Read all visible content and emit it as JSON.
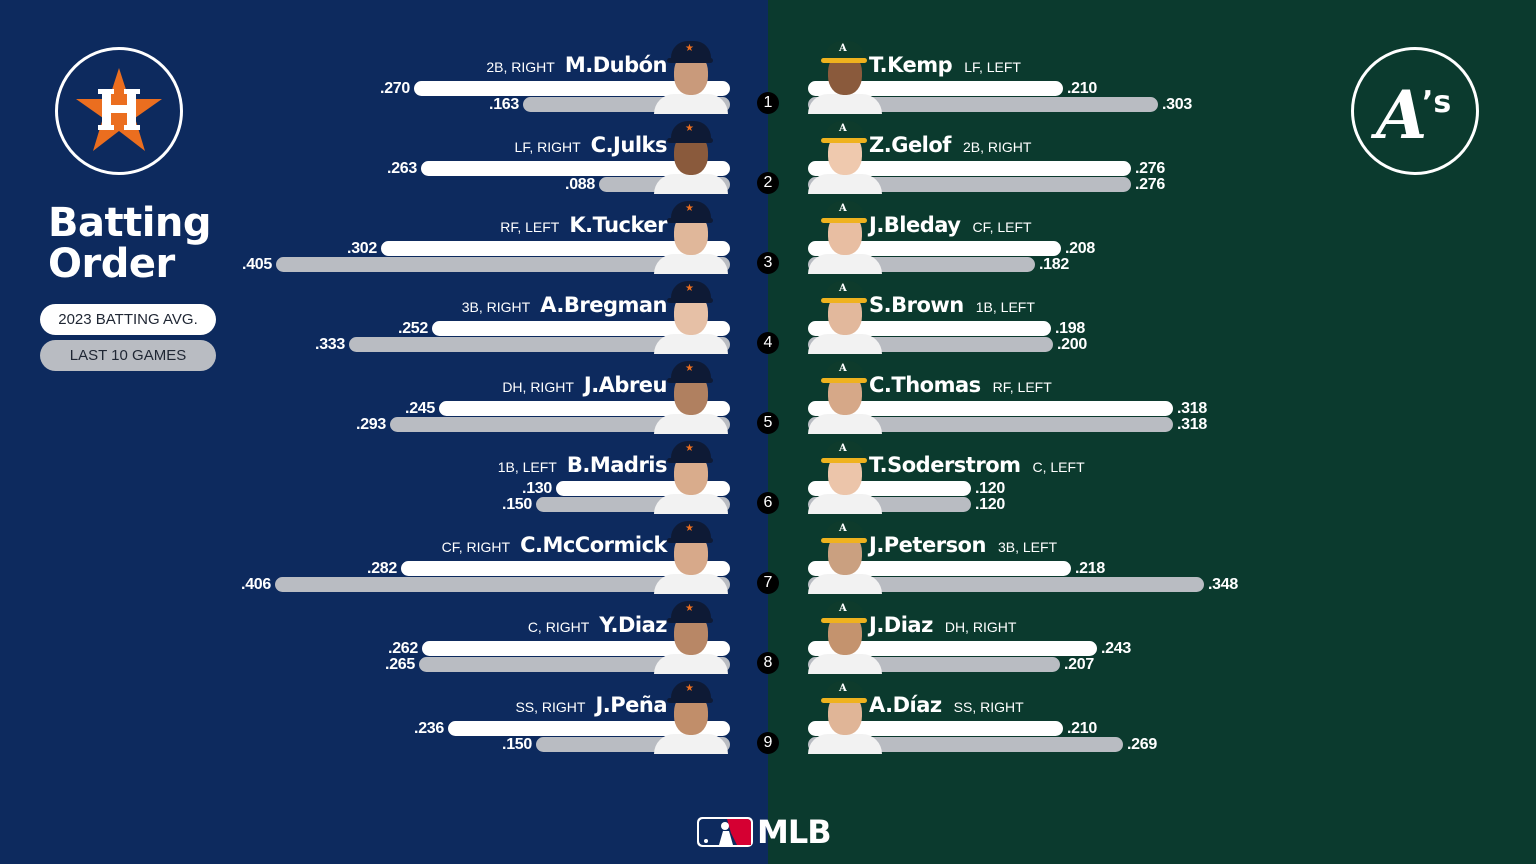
{
  "title": {
    "line1": "Batting",
    "line2": "Order"
  },
  "legend": {
    "season": "2023 BATTING AVG.",
    "last10": "LAST 10 GAMES"
  },
  "colors": {
    "astros_bg": "#0d2a5e",
    "athletics_bg": "#0b3a2e",
    "season_bar": "#ffffff",
    "last10_bar": "#b9bcc2",
    "astros_orange": "#eb6e1f",
    "athletics_gold": "#efb21e"
  },
  "teams": {
    "home": {
      "name": "Houston Astros",
      "logo": "astros-logo"
    },
    "away": {
      "name": "Oakland Athletics",
      "logo": "athletics-logo"
    }
  },
  "footer": {
    "brand": "MLB"
  },
  "chart_data": {
    "type": "bar",
    "title": "Batting Order",
    "orientation": "horizontal, mirrored (Astros left, Athletics right)",
    "legend": [
      "2023 BATTING AVG.",
      "LAST 10 GAMES"
    ],
    "legend_position": "left",
    "categories": [
      "1",
      "2",
      "3",
      "4",
      "5",
      "6",
      "7",
      "8",
      "9"
    ],
    "astros": [
      {
        "order": "1",
        "name": "M.Dubón",
        "pos": "2B, RIGHT",
        "avg": ".270",
        "last10": ".163",
        "avg_v": 0.27,
        "last10_v": 0.163
      },
      {
        "order": "2",
        "name": "C.Julks",
        "pos": "LF, RIGHT",
        "avg": ".263",
        "last10": ".088",
        "avg_v": 0.263,
        "last10_v": 0.088
      },
      {
        "order": "3",
        "name": "K.Tucker",
        "pos": "RF, LEFT",
        "avg": ".302",
        "last10": ".405",
        "avg_v": 0.302,
        "last10_v": 0.405
      },
      {
        "order": "4",
        "name": "A.Bregman",
        "pos": "3B, RIGHT",
        "avg": ".252",
        "last10": ".333",
        "avg_v": 0.252,
        "last10_v": 0.333
      },
      {
        "order": "5",
        "name": "J.Abreu",
        "pos": "DH, RIGHT",
        "avg": ".245",
        "last10": ".293",
        "avg_v": 0.245,
        "last10_v": 0.293
      },
      {
        "order": "6",
        "name": "B.Madris",
        "pos": "1B, LEFT",
        "avg": ".130",
        "last10": ".150",
        "avg_v": 0.13,
        "last10_v": 0.15
      },
      {
        "order": "7",
        "name": "C.McCormick",
        "pos": "CF, RIGHT",
        "avg": ".282",
        "last10": ".406",
        "avg_v": 0.282,
        "last10_v": 0.406
      },
      {
        "order": "8",
        "name": "Y.Diaz",
        "pos": "C, RIGHT",
        "avg": ".262",
        "last10": ".265",
        "avg_v": 0.262,
        "last10_v": 0.265
      },
      {
        "order": "9",
        "name": "J.Peña",
        "pos": "SS, RIGHT",
        "avg": ".236",
        "last10": ".150",
        "avg_v": 0.236,
        "last10_v": 0.15
      }
    ],
    "athletics": [
      {
        "order": "1",
        "name": "T.Kemp",
        "pos": "LF, LEFT",
        "avg": ".210",
        "last10": ".303",
        "avg_v": 0.21,
        "last10_v": 0.303
      },
      {
        "order": "2",
        "name": "Z.Gelof",
        "pos": "2B, RIGHT",
        "avg": ".276",
        "last10": ".276",
        "avg_v": 0.276,
        "last10_v": 0.276
      },
      {
        "order": "3",
        "name": "J.Bleday",
        "pos": "CF, LEFT",
        "avg": ".208",
        "last10": ".182",
        "avg_v": 0.208,
        "last10_v": 0.182
      },
      {
        "order": "4",
        "name": "S.Brown",
        "pos": "1B, LEFT",
        "avg": ".198",
        "last10": ".200",
        "avg_v": 0.198,
        "last10_v": 0.2
      },
      {
        "order": "5",
        "name": "C.Thomas",
        "pos": "RF, LEFT",
        "avg": ".318",
        "last10": ".318",
        "avg_v": 0.318,
        "last10_v": 0.318
      },
      {
        "order": "6",
        "name": "T.Soderstrom",
        "pos": "C, LEFT",
        "avg": ".120",
        "last10": ".120",
        "avg_v": 0.12,
        "last10_v": 0.12
      },
      {
        "order": "7",
        "name": "J.Peterson",
        "pos": "3B, LEFT",
        "avg": ".218",
        "last10": ".348",
        "avg_v": 0.218,
        "last10_v": 0.348
      },
      {
        "order": "8",
        "name": "J.Diaz",
        "pos": "DH, RIGHT",
        "avg": ".243",
        "last10": ".207",
        "avg_v": 0.243,
        "last10_v": 0.207
      },
      {
        "order": "9",
        "name": "A.Díaz",
        "pos": "SS, RIGHT",
        "avg": ".210",
        "last10": ".269",
        "avg_v": 0.21,
        "last10_v": 0.269
      }
    ]
  }
}
